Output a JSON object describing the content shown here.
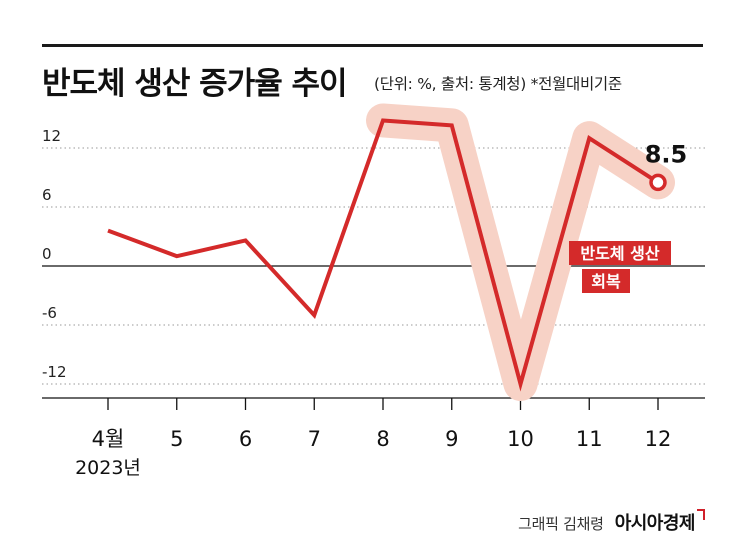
{
  "title": "반도체 생산 증가율 추이",
  "subtitle": "(단위: %, 출처: 통계청)  *전월대비기준",
  "footer": {
    "credit": "그래픽 김채령",
    "brand": "아시아경제"
  },
  "colors": {
    "line": "#d42a2a",
    "highlight": "#f7d2c6",
    "label_bg": "#d42a2a",
    "axis": "#111111",
    "grid": "#999999"
  },
  "chart_data": {
    "type": "line",
    "categories": [
      "4월",
      "5",
      "6",
      "7",
      "8",
      "9",
      "10",
      "11",
      "12"
    ],
    "year_label": "2023년",
    "series": [
      {
        "values": [
          3.6,
          1.0,
          2.6,
          -5.0,
          14.8,
          14.3,
          -12.0,
          13.0,
          8.5
        ]
      }
    ],
    "yticks": [
      12,
      6,
      0,
      -6,
      -12
    ],
    "ylim": [
      -12,
      14.8
    ],
    "grid": true,
    "end_label": "8.5",
    "annotation": [
      "반도체 생산",
      "회복"
    ]
  }
}
